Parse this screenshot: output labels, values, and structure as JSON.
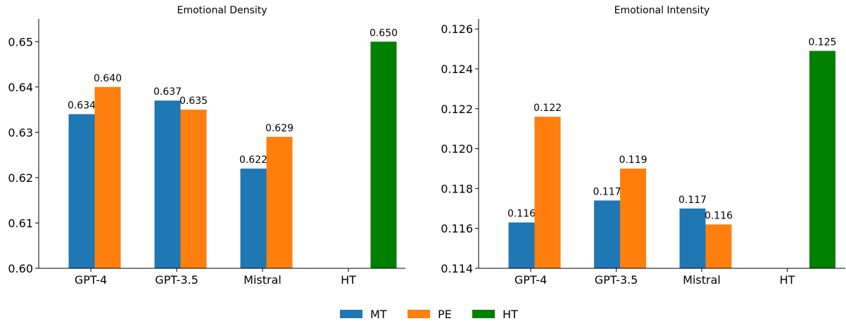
{
  "chart_data": [
    {
      "type": "bar",
      "title": "Emotional Density",
      "xlabel": "",
      "ylabel": "",
      "categories": [
        "GPT-4",
        "GPT-3.5",
        "Mistral",
        "HT"
      ],
      "ylim": [
        0.6,
        0.655
      ],
      "yticks": [
        0.6,
        0.61,
        0.62,
        0.63,
        0.64,
        0.65
      ],
      "ytick_labels": [
        "0.60",
        "0.61",
        "0.62",
        "0.63",
        "0.64",
        "0.65"
      ],
      "series": [
        {
          "name": "MT",
          "color": "#1f77b4",
          "values": [
            0.634,
            0.637,
            0.622,
            null
          ],
          "labels": [
            "0.634",
            "0.637",
            "0.622",
            ""
          ]
        },
        {
          "name": "PE",
          "color": "#ff7f0e",
          "values": [
            0.64,
            0.635,
            0.629,
            null
          ],
          "labels": [
            "0.640",
            "0.635",
            "0.629",
            ""
          ]
        },
        {
          "name": "HT",
          "color": "#008000",
          "values": [
            null,
            null,
            null,
            0.65
          ],
          "labels": [
            "",
            "",
            "",
            "0.650"
          ]
        }
      ],
      "grid": false
    },
    {
      "type": "bar",
      "title": "Emotional Intensity",
      "xlabel": "",
      "ylabel": "",
      "categories": [
        "GPT-4",
        "GPT-3.5",
        "Mistral",
        "HT"
      ],
      "ylim": [
        0.114,
        0.1265
      ],
      "yticks": [
        0.114,
        0.116,
        0.118,
        0.12,
        0.122,
        0.124,
        0.126
      ],
      "ytick_labels": [
        "0.114",
        "0.116",
        "0.118",
        "0.120",
        "0.122",
        "0.124",
        "0.126"
      ],
      "series": [
        {
          "name": "MT",
          "color": "#1f77b4",
          "values": [
            0.1163,
            0.1174,
            0.117,
            null
          ],
          "labels": [
            "0.116",
            "0.117",
            "0.117",
            ""
          ]
        },
        {
          "name": "PE",
          "color": "#ff7f0e",
          "values": [
            0.1216,
            0.119,
            0.1162,
            null
          ],
          "labels": [
            "0.122",
            "0.119",
            "0.116",
            ""
          ]
        },
        {
          "name": "HT",
          "color": "#008000",
          "values": [
            null,
            null,
            null,
            0.1249
          ],
          "labels": [
            "",
            "",
            "",
            "0.125"
          ]
        }
      ],
      "grid": false
    }
  ],
  "legend": {
    "placement": "bottom-center",
    "items": [
      {
        "label": "MT",
        "color": "#1f77b4"
      },
      {
        "label": "PE",
        "color": "#ff7f0e"
      },
      {
        "label": "HT",
        "color": "#008000"
      }
    ]
  }
}
